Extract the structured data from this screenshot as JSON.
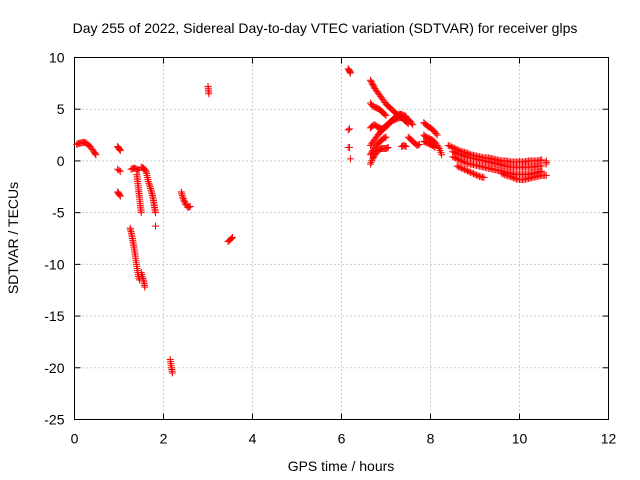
{
  "chart_data": {
    "type": "scatter",
    "title": "Day 255 of 2022, Sidereal Day-to-day VTEC variation (SDTVAR) for receiver glps",
    "xlabel": "GPS time / hours",
    "ylabel": "SDTVAR / TECUs",
    "xlim": [
      0,
      12
    ],
    "ylim": [
      -25,
      10
    ],
    "x_ticks": [
      0,
      2,
      4,
      6,
      8,
      10,
      12
    ],
    "y_ticks": [
      -25,
      -20,
      -15,
      -10,
      -5,
      0,
      5,
      10
    ],
    "x_tick_labels": [
      "0",
      "2",
      "4",
      "6",
      "8",
      "10",
      "12"
    ],
    "y_tick_labels": [
      "-25",
      "-20",
      "-15",
      "-10",
      "-5",
      "0",
      "5",
      "10"
    ],
    "grid": true,
    "marker": "+",
    "color": "#ff0000",
    "series": [
      {
        "name": "glps",
        "segments": [
          [
            [
              0.05,
              1.6
            ],
            [
              0.1,
              1.7
            ],
            [
              0.15,
              1.75
            ],
            [
              0.2,
              1.8
            ],
            [
              0.25,
              1.75
            ],
            [
              0.3,
              1.6
            ],
            [
              0.35,
              1.4
            ],
            [
              0.4,
              1.1
            ],
            [
              0.45,
              0.8
            ],
            [
              0.48,
              0.6
            ]
          ],
          [
            [
              0.97,
              1.4
            ],
            [
              1.0,
              1.2
            ],
            [
              1.03,
              1.0
            ]
          ],
          [
            [
              0.97,
              -0.8
            ],
            [
              1.0,
              -0.9
            ],
            [
              1.03,
              -1.0
            ]
          ],
          [
            [
              0.97,
              -3.0
            ],
            [
              1.0,
              -3.2
            ],
            [
              1.03,
              -3.4
            ]
          ],
          [
            [
              1.27,
              -0.8
            ],
            [
              1.3,
              -0.75
            ],
            [
              1.35,
              -0.7
            ],
            [
              1.4,
              -0.8
            ],
            [
              1.45,
              -0.9
            ]
          ],
          [
            [
              1.4,
              -1.3
            ],
            [
              1.42,
              -2.0
            ],
            [
              1.44,
              -2.8
            ],
            [
              1.46,
              -3.5
            ],
            [
              1.48,
              -4.3
            ],
            [
              1.5,
              -5.0
            ]
          ],
          [
            [
              1.25,
              -6.5
            ],
            [
              1.28,
              -7.0
            ],
            [
              1.3,
              -7.5
            ],
            [
              1.33,
              -8.2
            ],
            [
              1.36,
              -9.0
            ],
            [
              1.38,
              -9.6
            ],
            [
              1.4,
              -10.2
            ],
            [
              1.43,
              -11.0
            ],
            [
              1.46,
              -11.5
            ]
          ],
          [
            [
              1.5,
              -0.6
            ],
            [
              1.55,
              -0.7
            ],
            [
              1.6,
              -0.9
            ],
            [
              1.62,
              -1.2
            ],
            [
              1.64,
              -1.6
            ],
            [
              1.66,
              -2.0
            ],
            [
              1.7,
              -2.5
            ],
            [
              1.73,
              -3.0
            ],
            [
              1.76,
              -3.5
            ],
            [
              1.78,
              -4.0
            ],
            [
              1.8,
              -4.5
            ],
            [
              1.82,
              -5.0
            ]
          ],
          [
            [
              1.5,
              -10.8
            ],
            [
              1.53,
              -11.2
            ],
            [
              1.56,
              -11.7
            ],
            [
              1.58,
              -12.2
            ]
          ],
          [
            [
              1.82,
              -6.3
            ]
          ],
          [
            [
              2.15,
              -19.2
            ],
            [
              2.18,
              -20.0
            ],
            [
              2.2,
              -20.5
            ]
          ],
          [
            [
              2.4,
              -3.0
            ],
            [
              2.43,
              -3.5
            ],
            [
              2.46,
              -3.8
            ],
            [
              2.5,
              -4.2
            ],
            [
              2.55,
              -4.5
            ],
            [
              2.6,
              -4.4
            ]
          ],
          [
            [
              3.0,
              7.2
            ],
            [
              3.02,
              6.5
            ]
          ],
          [
            [
              3.45,
              -7.8
            ],
            [
              3.5,
              -7.6
            ],
            [
              3.55,
              -7.4
            ]
          ],
          [
            [
              6.15,
              8.9
            ],
            [
              6.18,
              8.7
            ],
            [
              6.2,
              8.5
            ]
          ],
          [
            [
              6.15,
              3.0
            ],
            [
              6.18,
              3.1
            ]
          ],
          [
            [
              6.15,
              1.3
            ],
            [
              6.18,
              1.3
            ]
          ],
          [
            [
              6.2,
              0.2
            ]
          ],
          [
            [
              6.65,
              7.8
            ],
            [
              6.7,
              7.4
            ],
            [
              6.75,
              7.0
            ],
            [
              6.8,
              6.7
            ],
            [
              6.85,
              6.4
            ],
            [
              6.9,
              6.1
            ],
            [
              6.95,
              5.8
            ],
            [
              7.0,
              5.5
            ],
            [
              7.05,
              5.3
            ],
            [
              7.1,
              5.1
            ],
            [
              7.15,
              4.9
            ],
            [
              7.2,
              4.7
            ],
            [
              7.25,
              4.5
            ],
            [
              7.3,
              4.4
            ],
            [
              7.35,
              4.2
            ],
            [
              7.4,
              4.0
            ],
            [
              7.45,
              3.8
            ],
            [
              7.5,
              3.6
            ]
          ],
          [
            [
              6.65,
              5.6
            ],
            [
              6.7,
              5.3
            ],
            [
              6.75,
              5.2
            ],
            [
              6.8,
              5.1
            ],
            [
              6.85,
              5.0
            ],
            [
              6.9,
              4.8
            ],
            [
              6.95,
              4.6
            ],
            [
              7.0,
              4.4
            ]
          ],
          [
            [
              6.65,
              3.2
            ],
            [
              6.7,
              3.4
            ],
            [
              6.75,
              3.5
            ],
            [
              6.8,
              3.3
            ],
            [
              6.85,
              3.2
            ],
            [
              6.9,
              3.1
            ],
            [
              6.95,
              3.2
            ],
            [
              7.0,
              3.4
            ],
            [
              7.05,
              3.6
            ],
            [
              7.1,
              3.8
            ],
            [
              7.15,
              3.9
            ],
            [
              7.2,
              4.0
            ],
            [
              7.25,
              4.1
            ],
            [
              7.3,
              4.2
            ],
            [
              7.35,
              4.2
            ],
            [
              7.4,
              4.2
            ],
            [
              7.45,
              4.1
            ],
            [
              7.5,
              4.0
            ],
            [
              7.55,
              3.8
            ],
            [
              7.6,
              3.5
            ]
          ],
          [
            [
              6.65,
              1.5
            ],
            [
              6.7,
              1.8
            ],
            [
              6.75,
              2.1
            ],
            [
              6.8,
              2.4
            ],
            [
              6.85,
              2.7
            ],
            [
              6.9,
              2.9
            ],
            [
              6.95,
              3.1
            ],
            [
              7.0,
              3.3
            ],
            [
              7.05,
              3.5
            ],
            [
              7.1,
              3.8
            ],
            [
              7.15,
              4.0
            ],
            [
              7.2,
              4.2
            ],
            [
              7.25,
              4.4
            ],
            [
              7.3,
              4.5
            ],
            [
              7.35,
              4.5
            ],
            [
              7.4,
              4.4
            ],
            [
              7.45,
              4.3
            ]
          ],
          [
            [
              6.65,
              -0.3
            ],
            [
              6.7,
              0.2
            ],
            [
              6.75,
              0.6
            ],
            [
              6.8,
              0.9
            ],
            [
              6.85,
              1.1
            ],
            [
              6.9,
              1.2
            ],
            [
              6.95,
              1.2
            ],
            [
              7.0,
              1.2
            ],
            [
              7.05,
              1.3
            ]
          ],
          [
            [
              6.65,
              0.6
            ],
            [
              6.7,
              1.0
            ],
            [
              6.75,
              1.3
            ],
            [
              6.8,
              1.6
            ],
            [
              6.85,
              1.8
            ],
            [
              6.9,
              2.0
            ],
            [
              6.95,
              2.2
            ],
            [
              7.0,
              2.3
            ]
          ],
          [
            [
              7.35,
              1.4
            ],
            [
              7.4,
              1.5
            ],
            [
              7.45,
              1.4
            ]
          ],
          [
            [
              7.5,
              2.3
            ],
            [
              7.55,
              2.1
            ],
            [
              7.6,
              1.9
            ],
            [
              7.65,
              1.7
            ],
            [
              7.7,
              1.5
            ],
            [
              7.75,
              1.6
            ]
          ],
          [
            [
              7.85,
              3.7
            ],
            [
              7.9,
              3.5
            ],
            [
              7.95,
              3.3
            ],
            [
              8.0,
              3.2
            ],
            [
              8.05,
              3.0
            ],
            [
              8.1,
              2.8
            ],
            [
              8.15,
              2.5
            ]
          ],
          [
            [
              7.85,
              2.5
            ],
            [
              7.9,
              2.3
            ],
            [
              7.95,
              2.2
            ],
            [
              8.0,
              2.1
            ],
            [
              8.05,
              2.0
            ],
            [
              8.1,
              1.8
            ],
            [
              8.15,
              1.5
            ],
            [
              8.2,
              1.2
            ],
            [
              8.25,
              0.6
            ]
          ],
          [
            [
              7.85,
              1.9
            ],
            [
              7.9,
              1.8
            ],
            [
              7.95,
              1.7
            ],
            [
              8.0,
              1.6
            ],
            [
              8.05,
              1.5
            ],
            [
              8.1,
              1.3
            ]
          ],
          [
            [
              8.4,
              1.5
            ],
            [
              8.5,
              1.3
            ],
            [
              8.6,
              1.1
            ],
            [
              8.7,
              0.9
            ],
            [
              8.8,
              0.8
            ],
            [
              8.9,
              0.6
            ],
            [
              9.0,
              0.5
            ],
            [
              9.1,
              0.4
            ],
            [
              9.2,
              0.3
            ],
            [
              9.3,
              0.3
            ],
            [
              9.4,
              0.2
            ],
            [
              9.5,
              0.1
            ],
            [
              9.6,
              0.0
            ],
            [
              9.7,
              0.0
            ],
            [
              9.8,
              -0.1
            ],
            [
              9.9,
              -0.1
            ],
            [
              10.0,
              -0.1
            ],
            [
              10.1,
              -0.1
            ],
            [
              10.2,
              0.0
            ],
            [
              10.3,
              0.0
            ],
            [
              10.4,
              0.0
            ],
            [
              10.5,
              0.1
            ]
          ],
          [
            [
              8.5,
              0.9
            ],
            [
              8.6,
              0.7
            ],
            [
              8.7,
              0.6
            ],
            [
              8.8,
              0.4
            ],
            [
              8.9,
              0.3
            ],
            [
              9.0,
              0.2
            ],
            [
              9.1,
              0.1
            ],
            [
              9.2,
              0.0
            ],
            [
              9.3,
              -0.1
            ],
            [
              9.4,
              -0.2
            ],
            [
              9.5,
              -0.3
            ],
            [
              9.6,
              -0.4
            ],
            [
              9.7,
              -0.5
            ],
            [
              9.8,
              -0.6
            ],
            [
              9.9,
              -0.6
            ],
            [
              10.0,
              -0.6
            ],
            [
              10.1,
              -0.6
            ],
            [
              10.2,
              -0.6
            ],
            [
              10.3,
              -0.6
            ],
            [
              10.4,
              -0.5
            ],
            [
              10.5,
              -0.5
            ]
          ],
          [
            [
              8.5,
              0.4
            ],
            [
              8.6,
              0.2
            ],
            [
              8.7,
              0.0
            ],
            [
              8.8,
              -0.2
            ],
            [
              8.9,
              -0.3
            ],
            [
              9.0,
              -0.4
            ],
            [
              9.1,
              -0.5
            ],
            [
              9.2,
              -0.6
            ],
            [
              9.3,
              -0.7
            ],
            [
              9.4,
              -0.8
            ],
            [
              9.5,
              -0.9
            ],
            [
              9.6,
              -1.0
            ],
            [
              9.7,
              -1.1
            ],
            [
              9.8,
              -1.2
            ],
            [
              9.9,
              -1.3
            ],
            [
              10.0,
              -1.3
            ],
            [
              10.1,
              -1.3
            ],
            [
              10.2,
              -1.3
            ],
            [
              10.3,
              -1.2
            ],
            [
              10.4,
              -1.1
            ],
            [
              10.5,
              -1.0
            ]
          ],
          [
            [
              8.6,
              -0.5
            ],
            [
              8.7,
              -0.7
            ],
            [
              8.8,
              -0.9
            ],
            [
              8.9,
              -1.1
            ],
            [
              9.0,
              -1.3
            ],
            [
              9.1,
              -1.5
            ],
            [
              9.2,
              -1.6
            ]
          ],
          [
            [
              9.6,
              -1.2
            ],
            [
              9.7,
              -1.4
            ],
            [
              9.8,
              -1.5
            ],
            [
              9.9,
              -1.7
            ],
            [
              10.0,
              -1.8
            ],
            [
              10.1,
              -1.8
            ],
            [
              10.2,
              -1.7
            ],
            [
              10.3,
              -1.6
            ],
            [
              10.4,
              -1.5
            ],
            [
              10.5,
              -1.4
            ],
            [
              10.6,
              -1.4
            ]
          ],
          [
            [
              10.6,
              -0.3
            ],
            [
              10.6,
              0.0
            ]
          ]
        ]
      }
    ]
  }
}
